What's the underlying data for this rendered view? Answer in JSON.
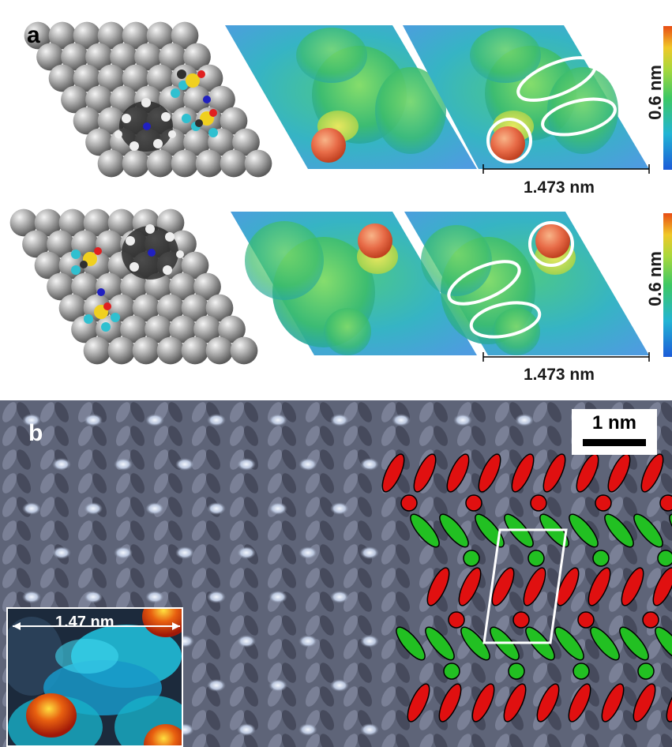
{
  "panel_a": {
    "label": "a",
    "top_row": {
      "scale_bar_label": "1.473 nm",
      "colorbar_label": "0.6 nm"
    },
    "bottom_row": {
      "scale_bar_label": "1.473 nm",
      "colorbar_label": "0.6 nm"
    }
  },
  "panel_b": {
    "label": "b",
    "scale_bar_label": "1 nm",
    "inset_label": "1.47 nm"
  },
  "colors": {
    "au_atom": "#a8a8a8",
    "anion_red": "#e01010",
    "cation_green": "#22c022",
    "outline": "#ffffff",
    "stm_background": "#5c6278"
  },
  "colorbar_colors": [
    "#1c5bd8",
    "#22b4d4",
    "#3cc864",
    "#a8d83c",
    "#f0c828",
    "#e84c14"
  ]
}
